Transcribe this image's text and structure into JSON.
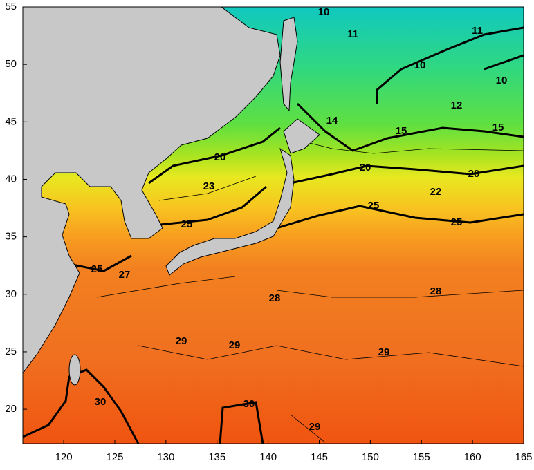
{
  "map": {
    "xlim": [
      116,
      165
    ],
    "ylim": [
      17,
      55
    ],
    "xticks": [
      120,
      125,
      130,
      135,
      140,
      145,
      150,
      155,
      160,
      165
    ],
    "yticks": [
      20,
      25,
      30,
      35,
      40,
      45,
      50,
      55
    ],
    "contour_labels": [
      10,
      11,
      10,
      10,
      11,
      12,
      14,
      15,
      15,
      20,
      20,
      20,
      22,
      23,
      25,
      25,
      25,
      25,
      27,
      28,
      28,
      29,
      29,
      29,
      29,
      30,
      30
    ]
  }
}
